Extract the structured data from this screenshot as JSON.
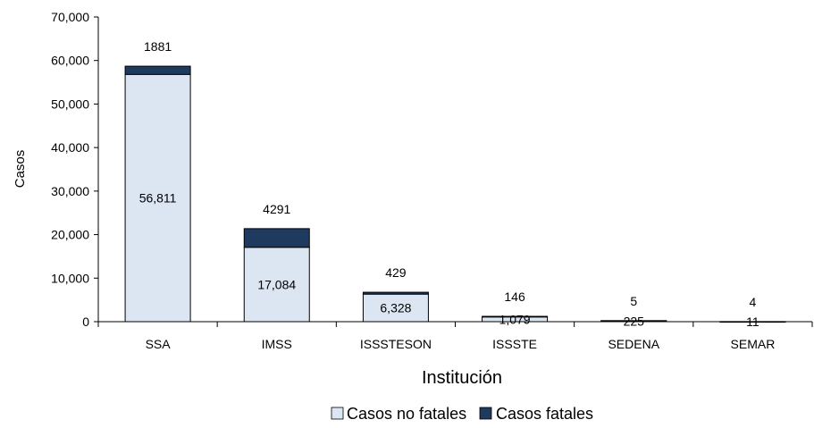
{
  "chart_data": {
    "type": "bar",
    "stacked": true,
    "categories": [
      "SSA",
      "IMSS",
      "ISSSTESON",
      "ISSSTE",
      "SEDENA",
      "SEMAR"
    ],
    "series": [
      {
        "name": "Casos no fatales",
        "values": [
          56811,
          17084,
          6328,
          1079,
          225,
          11
        ],
        "labels": [
          "56,811",
          "17,084",
          "6,328",
          "1,079",
          "225",
          "11"
        ],
        "color": "#dce6f2"
      },
      {
        "name": "Casos fatales",
        "values": [
          1881,
          4291,
          429,
          146,
          5,
          4
        ],
        "labels": [
          "1881",
          "4291",
          "429",
          "146",
          "5",
          "4"
        ],
        "color": "#1f3a5f"
      }
    ],
    "title": "",
    "xlabel": "Institución",
    "ylabel": "Casos",
    "ylim": [
      0,
      70000
    ],
    "yticks": [
      0,
      10000,
      20000,
      30000,
      40000,
      50000,
      60000,
      70000
    ],
    "ytick_labels": [
      "0",
      "10,000",
      "20,000",
      "30,000",
      "40,000",
      "50,000",
      "60,000",
      "70,000"
    ],
    "grid": false,
    "legend": "bottom"
  }
}
